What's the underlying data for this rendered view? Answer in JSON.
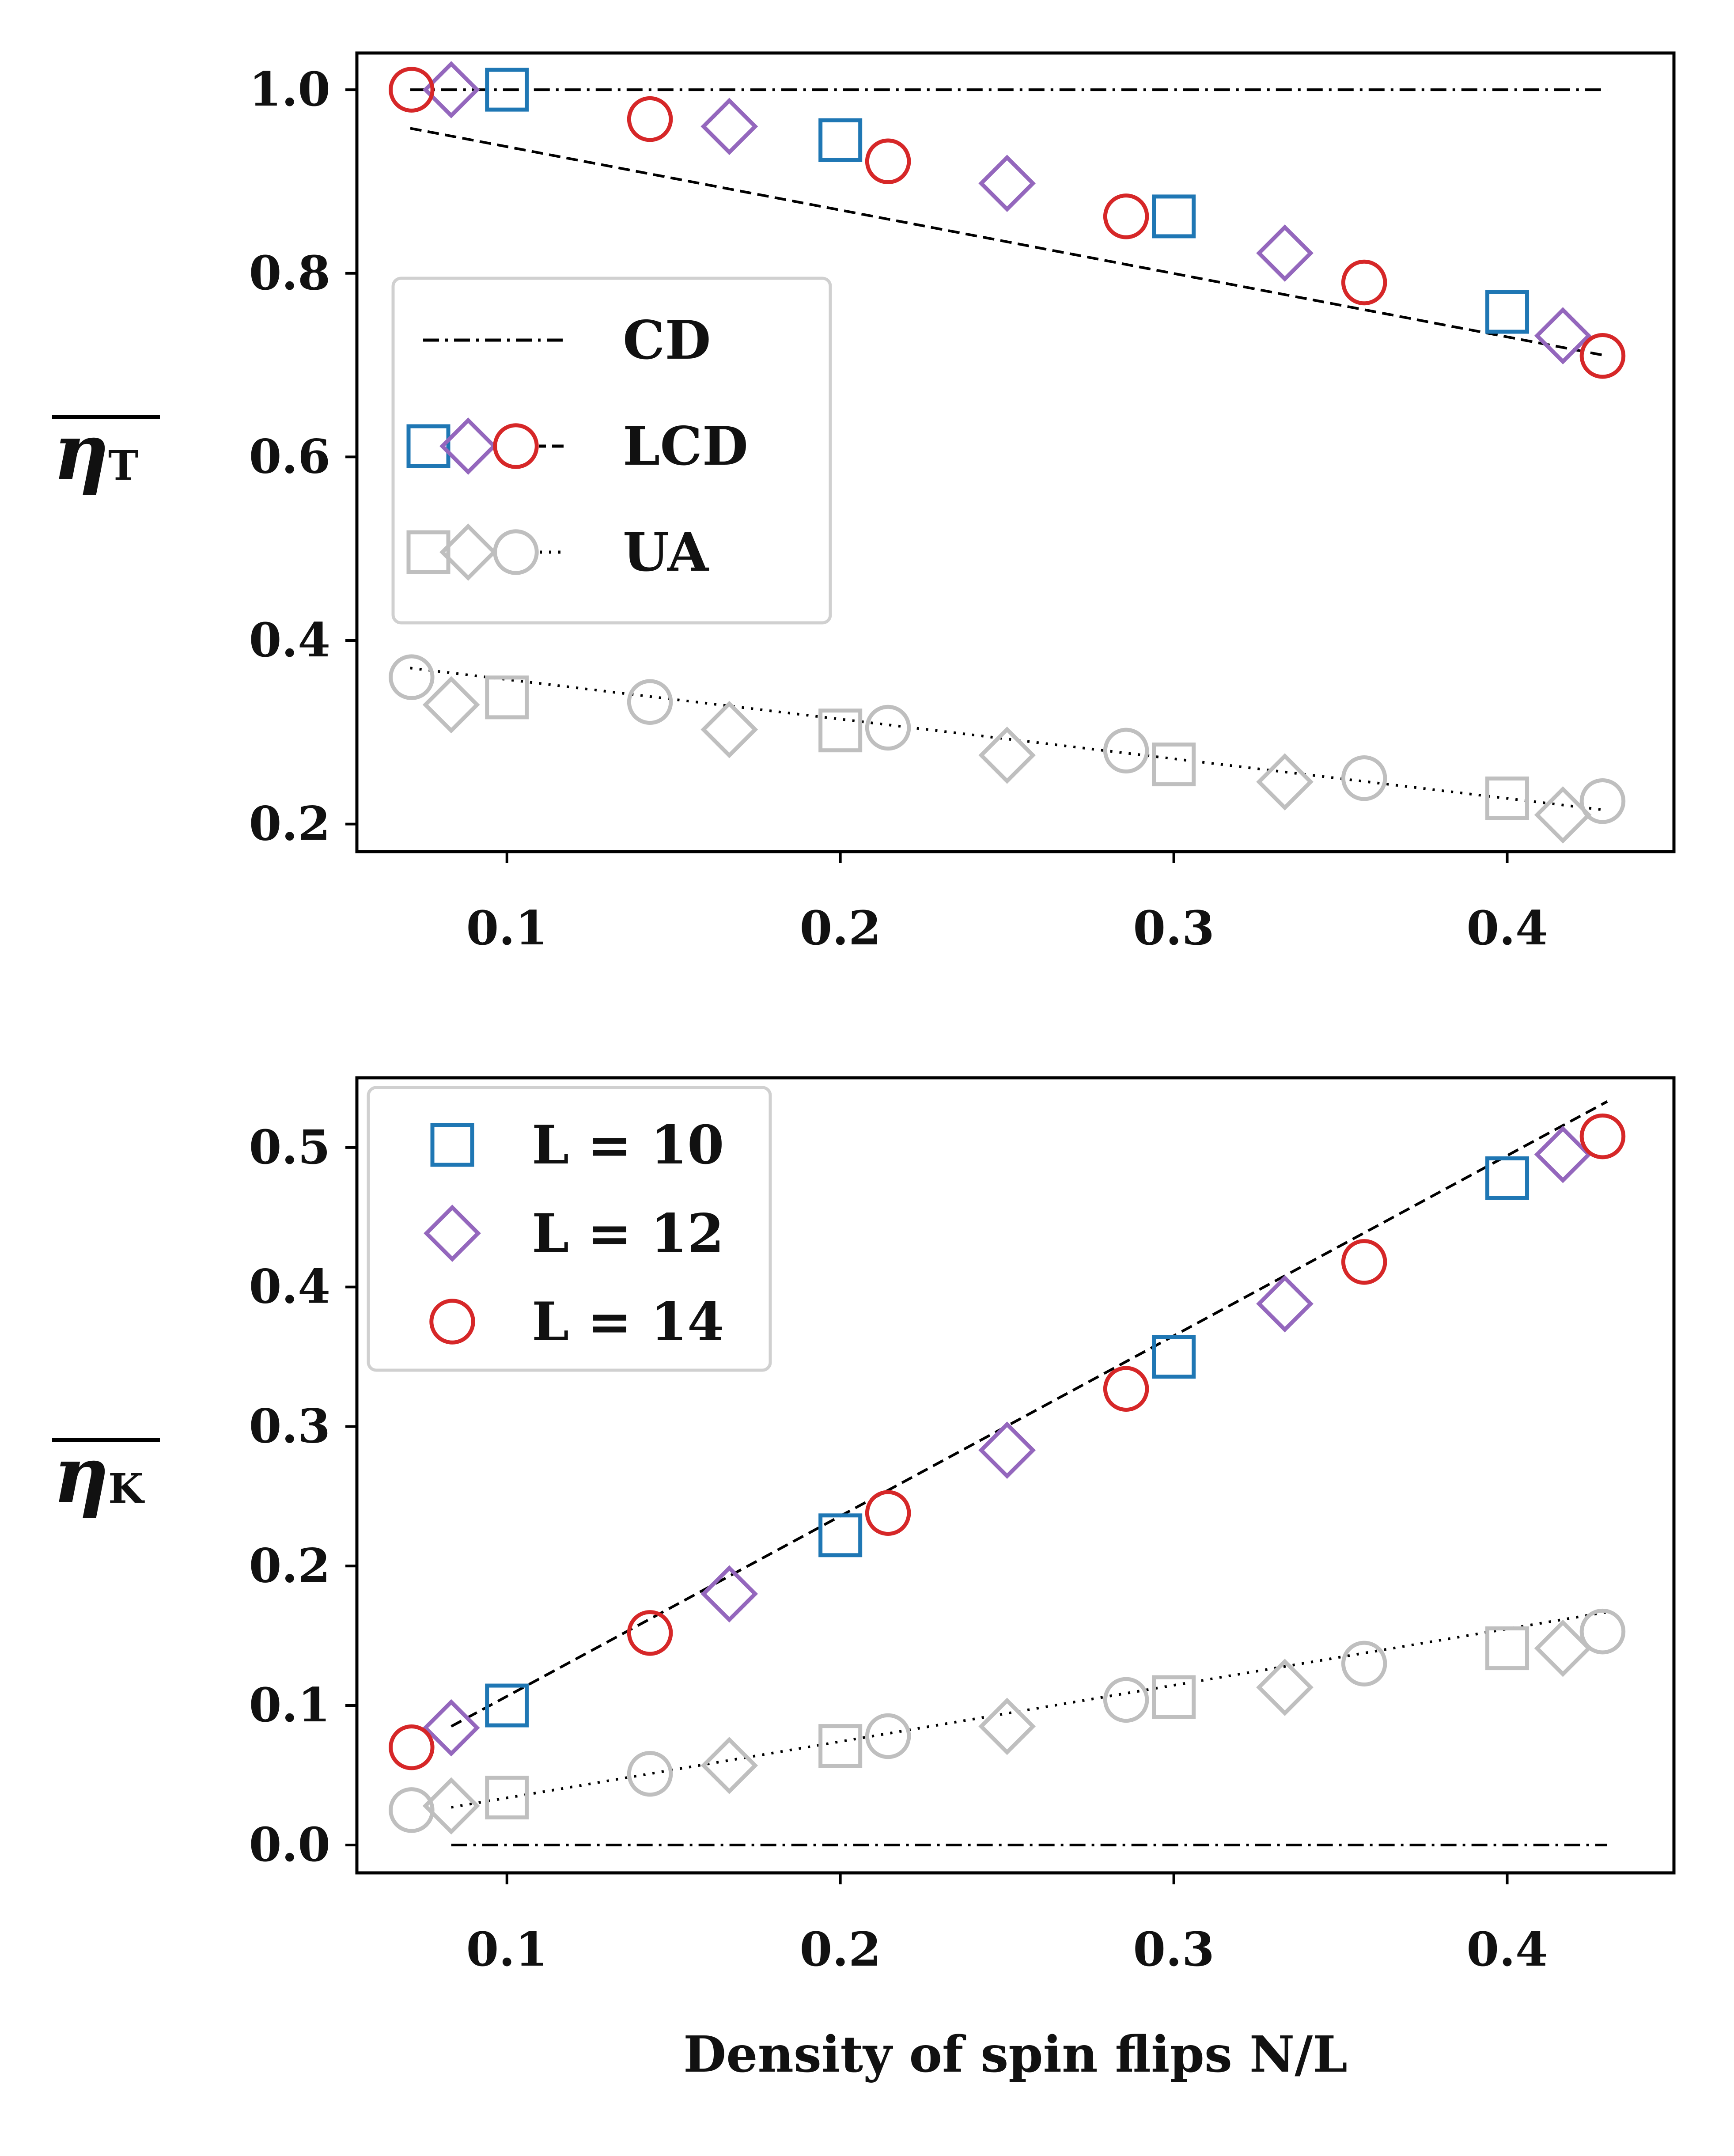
{
  "chart_data": [
    {
      "type": "scatter",
      "panel": "top",
      "ylabel": "η",
      "ylabel_sub": "T",
      "xlim": [
        0.055,
        0.45
      ],
      "ylim": [
        0.17,
        1.04
      ],
      "xticks": [
        0.1,
        0.2,
        0.3,
        0.4
      ],
      "xtick_labels": [
        "0.1",
        "0.2",
        "0.3",
        "0.4"
      ],
      "yticks": [
        0.2,
        0.4,
        0.6,
        0.8,
        1.0
      ],
      "ytick_labels": [
        "0.2",
        "0.4",
        "0.6",
        "0.8",
        "1.0"
      ],
      "lines": [
        {
          "name": "CD",
          "style": "dashdot",
          "x": [
            0.071,
            0.43
          ],
          "y": [
            1.0,
            1.0
          ]
        },
        {
          "name": "LCD fit",
          "style": "dashed",
          "x": [
            0.071,
            0.43
          ],
          "y": [
            0.958,
            0.71
          ]
        },
        {
          "name": "UA fit",
          "style": "dotted",
          "x": [
            0.071,
            0.43
          ],
          "y": [
            0.37,
            0.215
          ]
        }
      ],
      "series": [
        {
          "name": "L = 10",
          "group": "LCD",
          "marker": "square",
          "color": "#1f77b4",
          "x": [
            0.1,
            0.2,
            0.3,
            0.4
          ],
          "y": [
            1.0,
            0.945,
            0.862,
            0.758
          ]
        },
        {
          "name": "L = 12",
          "group": "LCD",
          "marker": "diamond",
          "color": "#9467bd",
          "x": [
            0.0833,
            0.1667,
            0.25,
            0.3333,
            0.4167
          ],
          "y": [
            1.0,
            0.96,
            0.898,
            0.822,
            0.732
          ]
        },
        {
          "name": "L = 14",
          "group": "LCD",
          "marker": "circle",
          "color": "#d62728",
          "x": [
            0.0714,
            0.1429,
            0.2143,
            0.2857,
            0.3571,
            0.4286
          ],
          "y": [
            1.0,
            0.968,
            0.922,
            0.862,
            0.79,
            0.71
          ]
        },
        {
          "name": "L = 10",
          "group": "UA",
          "marker": "square",
          "color": "#bfbfbf",
          "x": [
            0.1,
            0.2,
            0.3,
            0.4
          ],
          "y": [
            0.338,
            0.302,
            0.265,
            0.228
          ]
        },
        {
          "name": "L = 12",
          "group": "UA",
          "marker": "diamond",
          "color": "#bfbfbf",
          "x": [
            0.0833,
            0.1667,
            0.25,
            0.3333,
            0.4167
          ],
          "y": [
            0.33,
            0.303,
            0.275,
            0.246,
            0.21
          ]
        },
        {
          "name": "L = 14",
          "group": "UA",
          "marker": "circle",
          "color": "#bfbfbf",
          "x": [
            0.0714,
            0.1429,
            0.2143,
            0.2857,
            0.3571,
            0.4286
          ],
          "y": [
            0.36,
            0.333,
            0.305,
            0.28,
            0.25,
            0.225
          ]
        }
      ],
      "legend": {
        "position": "center-left",
        "entries": [
          {
            "label": "CD",
            "kind": "line",
            "style": "dashdot"
          },
          {
            "label": "LCD",
            "kind": "markers",
            "colors": [
              "#1f77b4",
              "#9467bd",
              "#d62728"
            ],
            "style": "dashed"
          },
          {
            "label": "UA",
            "kind": "markers",
            "colors": [
              "#bfbfbf",
              "#bfbfbf",
              "#bfbfbf"
            ],
            "style": "dotted"
          }
        ]
      }
    },
    {
      "type": "scatter",
      "panel": "bottom",
      "ylabel": "η",
      "ylabel_sub": "K",
      "xlabel": "Density of spin flips N/L",
      "xlim": [
        0.055,
        0.45
      ],
      "ylim": [
        -0.02,
        0.55
      ],
      "xticks": [
        0.1,
        0.2,
        0.3,
        0.4
      ],
      "xtick_labels": [
        "0.1",
        "0.2",
        "0.3",
        "0.4"
      ],
      "yticks": [
        0.0,
        0.1,
        0.2,
        0.3,
        0.4,
        0.5
      ],
      "ytick_labels": [
        "0.0",
        "0.1",
        "0.2",
        "0.3",
        "0.4",
        "0.5"
      ],
      "lines": [
        {
          "name": "CD",
          "style": "dashdot",
          "x": [
            0.0833,
            0.43
          ],
          "y": [
            0.0,
            0.0
          ]
        },
        {
          "name": "LCD fit",
          "style": "dashed",
          "x": [
            0.0833,
            0.43
          ],
          "y": [
            0.085,
            0.533
          ]
        },
        {
          "name": "UA fit",
          "style": "dotted",
          "x": [
            0.0833,
            0.43
          ],
          "y": [
            0.027,
            0.167
          ]
        }
      ],
      "series": [
        {
          "name": "L = 10",
          "group": "LCD",
          "marker": "square",
          "color": "#1f77b4",
          "x": [
            0.1,
            0.2,
            0.3,
            0.4
          ],
          "y": [
            0.1,
            0.222,
            0.35,
            0.478
          ]
        },
        {
          "name": "L = 12",
          "group": "LCD",
          "marker": "diamond",
          "color": "#9467bd",
          "x": [
            0.0833,
            0.1667,
            0.25,
            0.3333,
            0.4167
          ],
          "y": [
            0.084,
            0.18,
            0.283,
            0.388,
            0.495
          ]
        },
        {
          "name": "L = 14",
          "group": "LCD",
          "marker": "circle",
          "color": "#d62728",
          "x": [
            0.0714,
            0.1429,
            0.2143,
            0.2857,
            0.3571,
            0.4286
          ],
          "y": [
            0.07,
            0.152,
            0.238,
            0.327,
            0.418,
            0.508
          ]
        },
        {
          "name": "L = 10",
          "group": "UA",
          "marker": "square",
          "color": "#bfbfbf",
          "x": [
            0.1,
            0.2,
            0.3,
            0.4
          ],
          "y": [
            0.034,
            0.071,
            0.106,
            0.141
          ]
        },
        {
          "name": "L = 12",
          "group": "UA",
          "marker": "diamond",
          "color": "#bfbfbf",
          "x": [
            0.0833,
            0.1667,
            0.25,
            0.3333,
            0.4167
          ],
          "y": [
            0.028,
            0.057,
            0.085,
            0.113,
            0.141
          ]
        },
        {
          "name": "L = 14",
          "group": "UA",
          "marker": "circle",
          "color": "#bfbfbf",
          "x": [
            0.0714,
            0.1429,
            0.2143,
            0.2857,
            0.3571,
            0.4286
          ],
          "y": [
            0.025,
            0.051,
            0.078,
            0.104,
            0.13,
            0.153
          ]
        }
      ],
      "legend": {
        "position": "upper-left",
        "entries": [
          {
            "label": "L = 10",
            "kind": "marker",
            "marker": "square",
            "color": "#1f77b4"
          },
          {
            "label": "L = 12",
            "kind": "marker",
            "marker": "diamond",
            "color": "#9467bd"
          },
          {
            "label": "L = 14",
            "kind": "marker",
            "marker": "circle",
            "color": "#d62728"
          }
        ]
      }
    }
  ]
}
